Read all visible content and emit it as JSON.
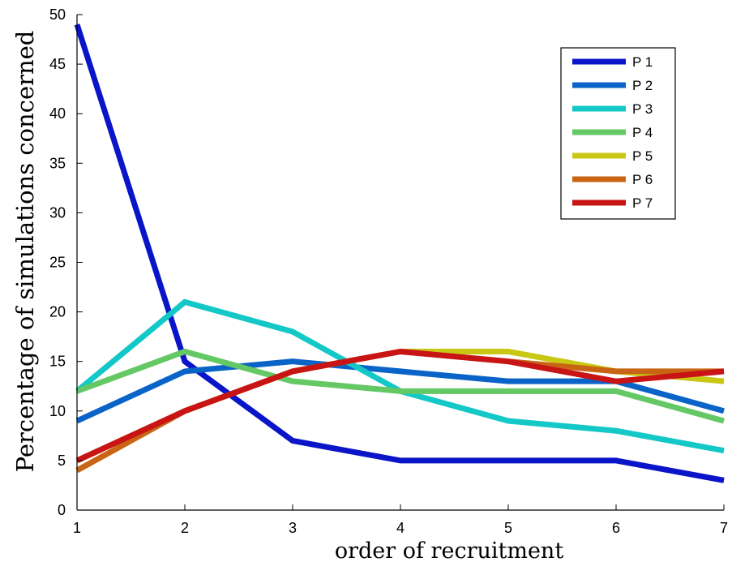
{
  "chart_data": {
    "type": "line",
    "title": "",
    "xlabel": "order of recruitment",
    "ylabel": "Percentage of simulations concerned",
    "x": [
      1,
      2,
      3,
      4,
      5,
      6,
      7
    ],
    "xlim": [
      1,
      7
    ],
    "ylim": [
      0,
      50
    ],
    "xticks": [
      "1",
      "2",
      "3",
      "4",
      "5",
      "6",
      "7"
    ],
    "yticks": [
      "0",
      "5",
      "10",
      "15",
      "20",
      "25",
      "30",
      "35",
      "40",
      "45",
      "50"
    ],
    "grid": false,
    "legend_position": "top-right",
    "series": [
      {
        "name": "P 1",
        "color": "#0a14c8",
        "values": [
          49,
          15,
          7,
          5,
          5,
          5,
          3
        ]
      },
      {
        "name": "P 2",
        "color": "#0a64c8",
        "values": [
          9,
          14,
          15,
          14,
          13,
          13,
          10
        ]
      },
      {
        "name": "P 3",
        "color": "#14c8c8",
        "values": [
          12,
          21,
          18,
          12,
          9,
          8,
          6
        ]
      },
      {
        "name": "P 4",
        "color": "#64c864",
        "values": [
          12,
          16,
          13,
          12,
          12,
          12,
          9
        ]
      },
      {
        "name": "P 5",
        "color": "#c8c814",
        "values": [
          5,
          10,
          14,
          16,
          16,
          14,
          13
        ]
      },
      {
        "name": "P 6",
        "color": "#c86414",
        "values": [
          4,
          10,
          14,
          16,
          15,
          14,
          14
        ]
      },
      {
        "name": "P 7",
        "color": "#c81414",
        "values": [
          5,
          10,
          14,
          16,
          15,
          13,
          14
        ]
      }
    ]
  }
}
